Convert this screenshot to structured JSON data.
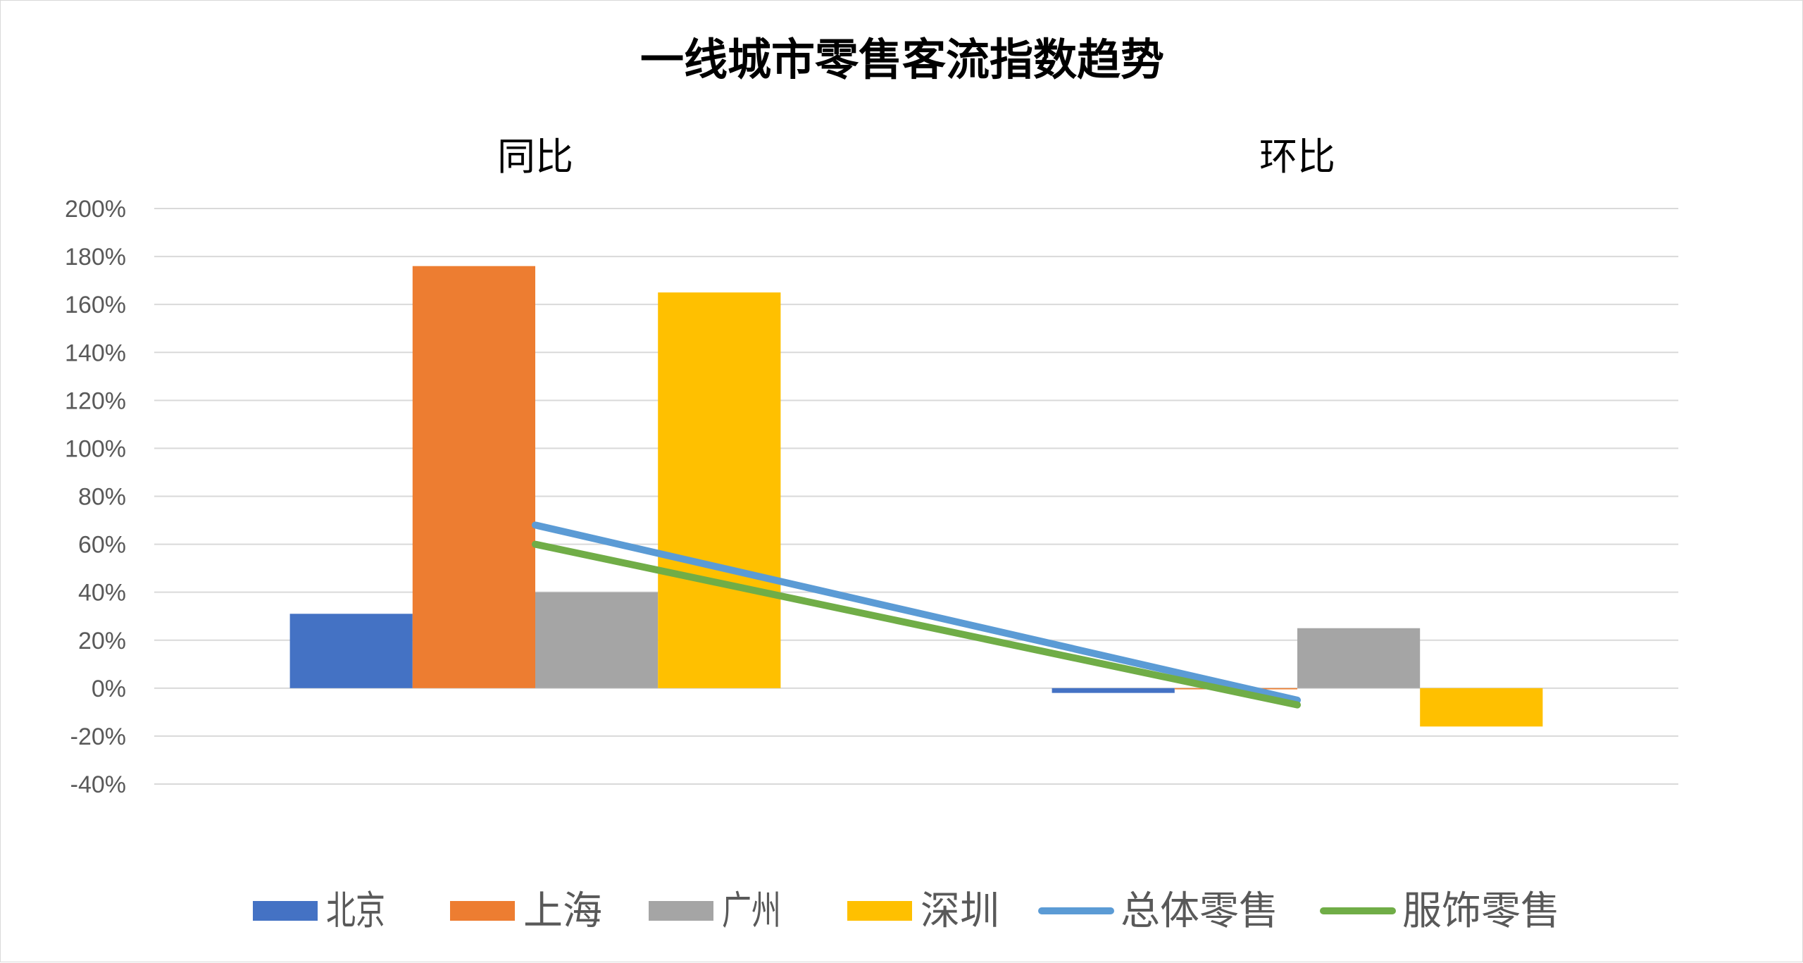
{
  "chart_data": {
    "type": "bar",
    "title": "一线城市零售客流指数趋势",
    "categories": [
      "同比",
      "环比"
    ],
    "y_ticks": [
      "200%",
      "180%",
      "160%",
      "140%",
      "120%",
      "100%",
      "80%",
      "60%",
      "40%",
      "20%",
      "0%",
      "-20%",
      "-40%"
    ],
    "ylim": [
      -0.4,
      2.0
    ],
    "ytick_step": 0.2,
    "grid": true,
    "legend_position": "bottom",
    "bar_series": [
      {
        "name": "北京",
        "values": [
          0.31,
          -0.02
        ],
        "color": "#4472C4"
      },
      {
        "name": "上海",
        "values": [
          1.76,
          -0.005
        ],
        "color": "#ED7D31"
      },
      {
        "name": "广州",
        "values": [
          0.4,
          0.25
        ],
        "color": "#A5A5A5"
      },
      {
        "name": "深圳",
        "values": [
          1.65,
          -0.16
        ],
        "color": "#FFC000"
      }
    ],
    "line_series": [
      {
        "name": "总体零售",
        "values": [
          0.68,
          -0.05
        ],
        "color": "#5B9BD5"
      },
      {
        "name": "服饰零售",
        "values": [
          0.6,
          -0.07
        ],
        "color": "#70AD47"
      }
    ]
  }
}
